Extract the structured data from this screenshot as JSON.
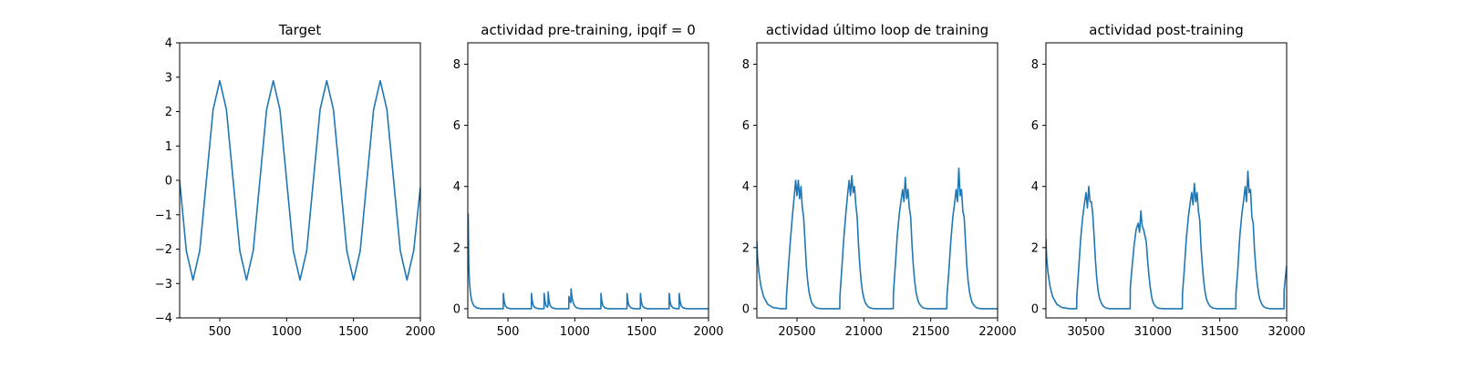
{
  "figure": {
    "line_color": "#1f77b4",
    "axis_color": "#000000",
    "background": "#ffffff"
  },
  "chart_data": [
    {
      "type": "line",
      "title": "Target",
      "xlabel": "",
      "ylabel": "",
      "xlim": [
        200,
        2000
      ],
      "ylim": [
        -4,
        4
      ],
      "xticks": [
        500,
        1000,
        1500,
        2000
      ],
      "yticks": [
        -4,
        -3,
        -2,
        -1,
        0,
        1,
        2,
        3,
        4
      ],
      "xtick_labels": [
        "500",
        "1000",
        "1500",
        "2000"
      ],
      "ytick_labels": [
        "−4",
        "−3",
        "−2",
        "−1",
        "0",
        "1",
        "2",
        "3",
        "4"
      ],
      "grid": false,
      "series": [
        {
          "x": [
            200,
            250,
            300,
            350,
            400,
            450,
            500,
            550,
            600,
            650,
            700,
            750,
            800,
            850,
            900,
            950,
            1000,
            1050,
            1100,
            1150,
            1200,
            1250,
            1300,
            1350,
            1400,
            1450,
            1500,
            1550,
            1600,
            1650,
            1700,
            1750,
            1800,
            1850,
            1900,
            1950,
            2000
          ],
          "y": [
            0,
            -2.05,
            -2.9,
            -2.05,
            0,
            2.05,
            2.9,
            2.05,
            0,
            -2.05,
            -2.9,
            -2.05,
            0,
            2.05,
            2.9,
            2.05,
            0,
            -2.05,
            -2.9,
            -2.05,
            0,
            2.05,
            2.9,
            2.05,
            0,
            -2.05,
            -2.9,
            -2.05,
            0,
            2.05,
            2.9,
            2.05,
            0,
            -2.05,
            -2.9,
            -2.05,
            -0.2
          ]
        }
      ]
    },
    {
      "type": "line",
      "title": "actividad pre-training, ipqif = 0",
      "xlabel": "",
      "ylabel": "",
      "xlim": [
        200,
        2000
      ],
      "ylim": [
        -0.3,
        8.7
      ],
      "xticks": [
        500,
        1000,
        1500,
        2000
      ],
      "yticks": [
        0,
        2,
        4,
        6,
        8
      ],
      "xtick_labels": [
        "500",
        "1000",
        "1500",
        "2000"
      ],
      "ytick_labels": [
        "0",
        "2",
        "4",
        "6",
        "8"
      ],
      "grid": false,
      "series": [
        {
          "x": [
            200,
            203,
            207,
            212,
            220,
            230,
            245,
            265,
            300,
            350,
            400,
            465,
            466,
            472,
            480,
            495,
            520,
            560,
            620,
            675,
            676,
            682,
            690,
            705,
            730,
            770,
            771,
            777,
            785,
            795,
            800,
            801,
            807,
            815,
            830,
            860,
            900,
            955,
            956,
            962,
            970,
            972,
            980,
            985,
            995,
            1010,
            1040,
            1080,
            1140,
            1195,
            1196,
            1202,
            1210,
            1225,
            1250,
            1290,
            1340,
            1390,
            1391,
            1397,
            1405,
            1420,
            1445,
            1490,
            1491,
            1497,
            1505,
            1520,
            1545,
            1590,
            1650,
            1705,
            1706,
            1712,
            1720,
            1735,
            1760,
            1780,
            1781,
            1787,
            1795,
            1810,
            1840,
            1900,
            2000
          ],
          "y": [
            1.6,
            3.1,
            1.5,
            0.9,
            0.5,
            0.25,
            0.1,
            0.03,
            0,
            0,
            0,
            0,
            0.5,
            0.25,
            0.1,
            0.03,
            0,
            0,
            0,
            0,
            0.5,
            0.25,
            0.1,
            0.03,
            0,
            0,
            0.5,
            0.25,
            0.1,
            0.05,
            0.1,
            0.55,
            0.28,
            0.12,
            0.03,
            0,
            0,
            0,
            0.4,
            0.25,
            0.2,
            0.65,
            0.35,
            0.25,
            0.12,
            0.04,
            0,
            0,
            0,
            0,
            0.5,
            0.25,
            0.1,
            0.03,
            0,
            0,
            0,
            0,
            0.5,
            0.25,
            0.1,
            0.03,
            0,
            0,
            0.5,
            0.25,
            0.1,
            0.03,
            0,
            0,
            0,
            0,
            0.5,
            0.25,
            0.1,
            0.03,
            0,
            0,
            0.5,
            0.25,
            0.1,
            0.03,
            0,
            0,
            0
          ]
        }
      ]
    },
    {
      "type": "line",
      "title": "actividad último loop de training",
      "xlabel": "",
      "ylabel": "",
      "xlim": [
        20200,
        22000
      ],
      "ylim": [
        -0.3,
        8.7
      ],
      "xticks": [
        20500,
        21000,
        21500,
        22000
      ],
      "yticks": [
        0,
        2,
        4,
        6,
        8
      ],
      "xtick_labels": [
        "20500",
        "21000",
        "21500",
        "22000"
      ],
      "ytick_labels": [
        "0",
        "2",
        "4",
        "6",
        "8"
      ],
      "grid": false,
      "series": [
        {
          "x": [
            20200,
            20205,
            20215,
            20230,
            20250,
            20280,
            20320,
            20380,
            20420,
            20421,
            20435,
            20450,
            20465,
            20480,
            20490,
            20500,
            20510,
            20520,
            20530,
            20540,
            20550,
            20560,
            20570,
            20580,
            20590,
            20600,
            20610,
            20625,
            20640,
            20660,
            20690,
            20730,
            20780,
            20820,
            20821,
            20835,
            20850,
            20865,
            20880,
            20890,
            20900,
            20910,
            20920,
            20930,
            20940,
            20950,
            20960,
            20970,
            20980,
            20990,
            21000,
            21010,
            21025,
            21040,
            21060,
            21090,
            21130,
            21180,
            21220,
            21221,
            21235,
            21250,
            21265,
            21280,
            21290,
            21300,
            21310,
            21320,
            21330,
            21340,
            21350,
            21360,
            21370,
            21380,
            21390,
            21400,
            21410,
            21425,
            21440,
            21460,
            21490,
            21530,
            21580,
            21620,
            21621,
            21635,
            21650,
            21665,
            21680,
            21690,
            21700,
            21710,
            21720,
            21730,
            21740,
            21750,
            21760,
            21770,
            21780,
            21790,
            21800,
            21810,
            21825,
            21840,
            21860,
            21890,
            21930,
            22000
          ],
          "y": [
            2.2,
            1.7,
            1.2,
            0.75,
            0.4,
            0.15,
            0.04,
            0,
            0,
            0.4,
            1.3,
            2.2,
            3.0,
            3.7,
            4.2,
            3.7,
            4.2,
            3.6,
            4.0,
            3.3,
            3.0,
            2.2,
            1.4,
            0.9,
            0.55,
            0.35,
            0.2,
            0.1,
            0.04,
            0.01,
            0,
            0,
            0,
            0,
            0.4,
            1.3,
            2.3,
            3.1,
            3.8,
            4.2,
            3.7,
            4.35,
            3.8,
            4.0,
            3.4,
            3.0,
            2.1,
            1.4,
            0.9,
            0.55,
            0.35,
            0.2,
            0.1,
            0.04,
            0.01,
            0,
            0,
            0,
            0,
            0.5,
            1.4,
            2.4,
            3.1,
            3.6,
            3.9,
            3.5,
            4.3,
            3.6,
            3.9,
            3.3,
            3.0,
            2.1,
            1.4,
            0.9,
            0.55,
            0.35,
            0.2,
            0.1,
            0.04,
            0.01,
            0,
            0,
            0,
            0,
            0.4,
            1.2,
            2.2,
            3.0,
            3.5,
            3.9,
            3.5,
            4.6,
            3.7,
            3.9,
            3.2,
            3.0,
            2.2,
            1.4,
            0.9,
            0.55,
            0.35,
            0.2,
            0.1,
            0.04,
            0.01,
            0,
            0,
            0
          ]
        }
      ]
    },
    {
      "type": "line",
      "title": "actividad post-training",
      "xlabel": "",
      "ylabel": "",
      "xlim": [
        30200,
        32000
      ],
      "ylim": [
        -0.3,
        8.7
      ],
      "xticks": [
        30500,
        31000,
        31500,
        32000
      ],
      "yticks": [
        0,
        2,
        4,
        6,
        8
      ],
      "xtick_labels": [
        "30500",
        "31000",
        "31500",
        "32000"
      ],
      "ytick_labels": [
        "0",
        "2",
        "4",
        "6",
        "8"
      ],
      "grid": false,
      "series": [
        {
          "x": [
            30200,
            30205,
            30215,
            30230,
            30250,
            30280,
            30320,
            30380,
            30430,
            30431,
            30445,
            30460,
            30475,
            30490,
            30500,
            30510,
            30520,
            30530,
            30540,
            30550,
            30560,
            30570,
            30580,
            30590,
            30600,
            30615,
            30630,
            30650,
            30680,
            30720,
            30780,
            30830,
            30831,
            30845,
            30860,
            30875,
            30890,
            30900,
            30910,
            30920,
            30930,
            30940,
            30950,
            30960,
            30970,
            30980,
            30990,
            31000,
            31015,
            31030,
            31050,
            31080,
            31120,
            31180,
            31220,
            31221,
            31235,
            31250,
            31265,
            31280,
            31290,
            31300,
            31310,
            31320,
            31330,
            31340,
            31350,
            31360,
            31370,
            31380,
            31390,
            31400,
            31415,
            31430,
            31450,
            31480,
            31520,
            31580,
            31620,
            31621,
            31635,
            31650,
            31665,
            31680,
            31690,
            31700,
            31710,
            31720,
            31730,
            31740,
            31750,
            31760,
            31770,
            31780,
            31790,
            31800,
            31815,
            31830,
            31850,
            31880,
            31920,
            31960,
            31980,
            31981,
            31990,
            32000
          ],
          "y": [
            2.3,
            1.7,
            1.2,
            0.75,
            0.4,
            0.15,
            0.04,
            0,
            0,
            0.4,
            1.3,
            2.3,
            3.0,
            3.5,
            3.8,
            3.3,
            4.0,
            3.5,
            3.5,
            3.1,
            2.4,
            1.6,
            1.0,
            0.6,
            0.35,
            0.18,
            0.08,
            0.02,
            0,
            0,
            0,
            0,
            0.7,
            1.4,
            2.1,
            2.6,
            2.8,
            2.5,
            3.2,
            2.7,
            2.6,
            2.4,
            2.2,
            1.6,
            1.1,
            0.7,
            0.4,
            0.22,
            0.1,
            0.04,
            0.01,
            0,
            0,
            0,
            0,
            0.5,
            1.3,
            2.3,
            3.0,
            3.5,
            3.8,
            3.4,
            4.1,
            3.5,
            3.8,
            3.2,
            2.9,
            2.0,
            1.4,
            0.9,
            0.55,
            0.32,
            0.16,
            0.07,
            0.02,
            0,
            0,
            0,
            0,
            0.5,
            1.3,
            2.4,
            3.1,
            3.6,
            4.0,
            3.5,
            4.5,
            3.8,
            3.9,
            3.0,
            2.8,
            1.9,
            1.3,
            0.85,
            0.5,
            0.3,
            0.14,
            0.06,
            0.02,
            0,
            0,
            0,
            0,
            0.6,
            1.0,
            1.4
          ]
        }
      ]
    }
  ]
}
